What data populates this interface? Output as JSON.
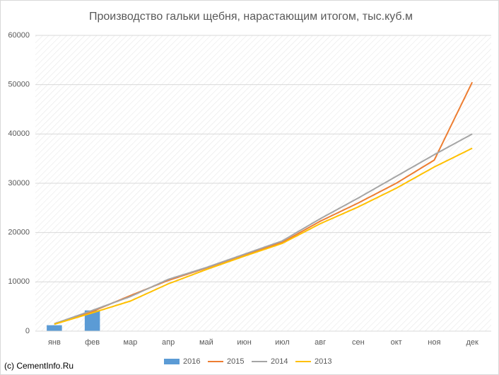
{
  "chart_data": {
    "type": "combo",
    "title": "Производство гальки  щебня, нарастающим итогом, тыс.куб.м",
    "watermark": "(c) CementInfo.Ru",
    "categories": [
      "янв",
      "фев",
      "мар",
      "апр",
      "май",
      "июн",
      "июл",
      "авг",
      "сен",
      "окт",
      "ноя",
      "дек"
    ],
    "series": [
      {
        "name": "2016",
        "type": "bar",
        "color": "#5b9bd5",
        "values": [
          1200,
          4200,
          null,
          null,
          null,
          null,
          null,
          null,
          null,
          null,
          null,
          null
        ]
      },
      {
        "name": "2015",
        "type": "line",
        "color": "#ed7d31",
        "values": [
          1500,
          4000,
          7200,
          10300,
          12800,
          15500,
          18000,
          22300,
          26000,
          30000,
          34700,
          50500
        ]
      },
      {
        "name": "2014",
        "type": "line",
        "color": "#a5a5a5",
        "values": [
          1500,
          4200,
          7000,
          10500,
          12900,
          15600,
          18300,
          22800,
          27000,
          31400,
          35800,
          40000
        ]
      },
      {
        "name": "2013",
        "type": "line",
        "color": "#ffc000",
        "values": [
          1400,
          3700,
          6100,
          9600,
          12500,
          15200,
          17800,
          21800,
          25200,
          29000,
          33300,
          37100
        ]
      }
    ],
    "ylim": [
      0,
      60000
    ],
    "yticks": [
      0,
      10000,
      20000,
      30000,
      40000,
      50000,
      60000
    ],
    "grid": true,
    "legend": "bottom"
  }
}
